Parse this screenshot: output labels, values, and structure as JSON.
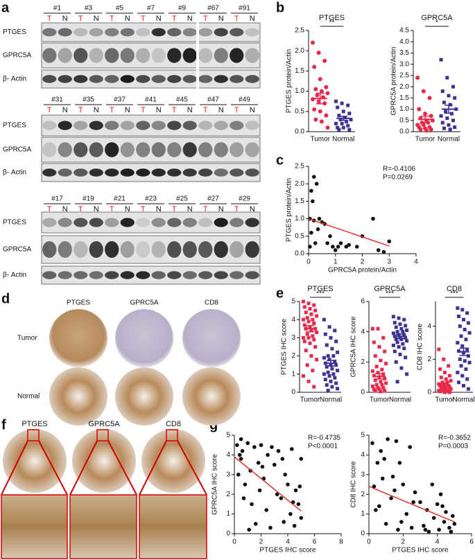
{
  "panel_labels": [
    "a",
    "b",
    "c",
    "d",
    "e",
    "f",
    "g"
  ],
  "blots": [
    {
      "samples": [
        "#1",
        "#3",
        "#5",
        "#7",
        "#9",
        "#67",
        "#91"
      ],
      "lane_labels": [
        "T",
        "N"
      ],
      "rows": [
        "PTGES",
        "GPRC5A",
        "β- Actin"
      ]
    },
    {
      "samples": [
        "#31",
        "#35",
        "#37",
        "#41",
        "#45",
        "#47",
        "#49"
      ],
      "lane_labels": [
        "T",
        "N"
      ],
      "rows": [
        "PTGES",
        "GPRC5A",
        "β- Actin"
      ]
    },
    {
      "samples": [
        "#17",
        "#19",
        "#21",
        "#23",
        "#25",
        "#27",
        "#29"
      ],
      "lane_labels": [
        "T",
        "N"
      ],
      "rows": [
        "PTGES",
        "GPRC5A",
        "β- Actin"
      ]
    }
  ],
  "tissue_d": {
    "columns": [
      "PTGES",
      "GPRC5A",
      "CD8"
    ],
    "rows": [
      "Tumor",
      "Normal"
    ]
  },
  "tissue_f": {
    "columns": [
      "PTGES",
      "GPRC5A",
      "CD8"
    ]
  },
  "chart_data": [
    {
      "type": "dot",
      "title": "PTGES",
      "ylabel": "PTGES protein/Actin",
      "categories": [
        "Tumor",
        "Normal"
      ],
      "annotation": "**",
      "ylim": [
        0,
        2.5
      ],
      "yticks": [
        {
          "value": 0,
          "label": "0.0"
        },
        0.5,
        {
          "value": 1,
          "label": "1.0"
        },
        1.5,
        {
          "value": 2,
          "label": "2.0"
        },
        2.5
      ],
      "groups": [
        {
          "color": "#e8294a",
          "marker": "circle",
          "values": [
            2.2,
            1.95,
            1.75,
            1.6,
            1.3,
            1.1,
            1.05,
            1.0,
            0.95,
            0.9,
            0.85,
            0.8,
            0.75,
            0.7,
            0.55,
            0.5,
            0.4,
            0.3,
            0.25,
            0.1
          ],
          "mean": 0.82,
          "sem": 0.13
        },
        {
          "color": "#3d3391",
          "marker": "square",
          "values": [
            0.75,
            0.7,
            0.65,
            0.6,
            0.5,
            0.45,
            0.4,
            0.35,
            0.3,
            0.3,
            0.25,
            0.2,
            0.2,
            0.15,
            0.1,
            0.1,
            0.05,
            0.05
          ],
          "mean": 0.33,
          "sem": 0.05
        }
      ]
    },
    {
      "type": "dot",
      "title": "GPRC5A",
      "ylabel": "GPRC5A protein/Actin",
      "categories": [
        "Tumor",
        "Normal"
      ],
      "annotation": "*",
      "ylim": [
        0,
        4.5
      ],
      "yticks": [
        {
          "value": 0,
          "label": "0.0"
        },
        0.5,
        {
          "value": 1,
          "label": "1.0"
        },
        1.5,
        {
          "value": 2,
          "label": "2.0"
        },
        2.5,
        {
          "value": 3,
          "label": "3.0"
        },
        3.5,
        {
          "value": 4,
          "label": "4.0"
        },
        4.5
      ],
      "groups": [
        {
          "color": "#e8294a",
          "marker": "circle",
          "values": [
            2.4,
            1.8,
            1.5,
            1.0,
            0.8,
            0.7,
            0.6,
            0.5,
            0.5,
            0.4,
            0.4,
            0.3,
            0.3,
            0.2,
            0.2,
            0.15,
            0.1,
            0.1,
            0.05
          ],
          "mean": 0.55,
          "sem": 0.14
        },
        {
          "color": "#3d3391",
          "marker": "square",
          "values": [
            3.2,
            2.4,
            2.0,
            1.8,
            1.6,
            1.5,
            1.3,
            1.2,
            1.0,
            0.9,
            0.8,
            0.7,
            0.6,
            0.5,
            0.4,
            0.3,
            0.2,
            0.15,
            0.1
          ],
          "mean": 1.0,
          "sem": 0.18
        }
      ]
    },
    {
      "type": "scatter",
      "xlabel": "GPRC5A protein/Actin",
      "ylabel": "PTGES protein/Actin",
      "annotations": [
        "R=-0.4106",
        "P=0.0269"
      ],
      "color": "#111111",
      "fit_color": "#e03030",
      "xlim": [
        0,
        4
      ],
      "xticks": [
        0,
        1,
        2,
        3,
        4
      ],
      "ylim": [
        0,
        2.5
      ],
      "yticks": [
        {
          "value": 0,
          "label": "0.0"
        },
        0.5,
        {
          "value": 1,
          "label": "1.0"
        },
        1.5,
        {
          "value": 2,
          "label": "2.0"
        },
        2.5
      ],
      "x": [
        0.05,
        0.1,
        0.2,
        0.15,
        0.3,
        0.2,
        0.4,
        0.35,
        0.5,
        0.6,
        0.1,
        0.25,
        0.7,
        0.8,
        0.9,
        1.0,
        1.1,
        1.2,
        1.4,
        1.5,
        1.8,
        2.0,
        2.4,
        2.6,
        2.8,
        3.0,
        0.05
      ],
      "y": [
        1.0,
        1.8,
        2.2,
        1.5,
        2.0,
        0.95,
        1.0,
        0.7,
        0.9,
        0.85,
        0.6,
        0.3,
        0.3,
        0.5,
        0.2,
        0.1,
        0.2,
        0.3,
        0.2,
        0.25,
        0.2,
        0.5,
        1.0,
        0.1,
        0.05,
        0.35,
        0.2
      ],
      "fit_x": [
        0,
        3
      ],
      "fit_y": [
        1.0,
        0.22
      ]
    },
    {
      "type": "dot",
      "title": "PTGES",
      "ylabel": "PTGES IHC score",
      "categories": [
        "Tumor",
        "Normal"
      ],
      "annotation": "***",
      "ylim": [
        0,
        5
      ],
      "yticks": [
        0,
        1,
        2,
        3,
        4,
        5
      ],
      "groups": [
        {
          "color": "#e8294a",
          "marker": "square",
          "values": [
            5,
            4.9,
            4.8,
            4.7,
            4.6,
            4.5,
            4.4,
            4.3,
            4.2,
            4.1,
            4,
            4,
            3.9,
            3.8,
            3.7,
            3.6,
            3.5,
            3.5,
            3.4,
            3.3,
            3.2,
            3.1,
            3,
            3,
            2.9,
            2.8,
            2.7,
            2.5,
            2.3,
            2,
            1.8,
            1.5,
            1.2,
            0.9,
            0.6,
            0.3
          ],
          "mean": 3.5,
          "sem": 0.17
        },
        {
          "color": "#3d3391",
          "marker": "square",
          "values": [
            4,
            3.6,
            3.4,
            3.2,
            3,
            2.8,
            2.6,
            2.4,
            2.2,
            2,
            2,
            1.9,
            1.8,
            1.7,
            1.6,
            1.5,
            1.5,
            1.4,
            1.3,
            1.2,
            1.1,
            1,
            1,
            0.9,
            0.8,
            0.7,
            0.6,
            0.5,
            0.4,
            0.3,
            0.2,
            0.1
          ],
          "mean": 1.6,
          "sem": 0.15
        }
      ]
    },
    {
      "type": "dot",
      "title": "GPRC5A",
      "ylabel": "GPRC5A IHC score",
      "categories": [
        "Tumor",
        "Normal"
      ],
      "annotation": "***",
      "ylim": [
        0,
        6
      ],
      "yticks": [
        0,
        2,
        4,
        6
      ],
      "groups": [
        {
          "color": "#e8294a",
          "marker": "square",
          "values": [
            4.2,
            4.2,
            3.6,
            3.3,
            3,
            2.7,
            2.4,
            2.1,
            1.9,
            1.7,
            1.5,
            1.4,
            1.3,
            1.2,
            1.1,
            1,
            0.9,
            0.8,
            0.7,
            0.6,
            0.5,
            0.5,
            0.4,
            0.3,
            0.3,
            0.2,
            0.2,
            0.1,
            0.1,
            0.05
          ],
          "mean": 1.05,
          "sem": 0.17
        },
        {
          "color": "#3d3391",
          "marker": "square",
          "values": [
            5,
            4.9,
            4.8,
            4.6,
            4.5,
            4.4,
            4.3,
            4.2,
            4.1,
            4,
            4,
            3.9,
            3.8,
            3.8,
            3.7,
            3.6,
            3.6,
            3.5,
            3.5,
            3.4,
            3.3,
            3.2,
            3.1,
            3,
            2.9,
            2.7,
            2.5,
            2.3,
            2,
            1.6,
            1.2,
            0.7
          ],
          "mean": 3.7,
          "sem": 0.13
        }
      ]
    },
    {
      "type": "dot",
      "title": "CD8",
      "ylabel": "CD8 IHC score",
      "categories": [
        "Tumor",
        "Normal"
      ],
      "annotation": "***",
      "ylim": [
        0,
        5.5
      ],
      "yticks": [
        0,
        2,
        4
      ],
      "groups": [
        {
          "color": "#e8294a",
          "marker": "square",
          "values": [
            2.6,
            2,
            1.6,
            1.4,
            1.2,
            1,
            0.9,
            0.8,
            0.7,
            0.6,
            0.6,
            0.5,
            0.5,
            0.4,
            0.4,
            0.3,
            0.3,
            0.3,
            0.2,
            0.2,
            0.2,
            0.1,
            0.1,
            0.1,
            0.05,
            0.05,
            0,
            0
          ],
          "mean": 0.45,
          "sem": 0.1
        },
        {
          "color": "#3d3391",
          "marker": "square",
          "values": [
            5.1,
            5,
            4.8,
            4.6,
            4.4,
            4.2,
            4,
            3.8,
            3.6,
            3.4,
            3.2,
            3,
            2.8,
            2.6,
            2.5,
            2.4,
            2.2,
            2,
            1.9,
            1.8,
            1.6,
            1.4,
            1.2,
            1,
            0.8,
            0.6,
            0.4,
            0.2
          ],
          "mean": 2.45,
          "sem": 0.22
        }
      ]
    },
    {
      "type": "scatter",
      "xlabel": "PTGES IHC score",
      "ylabel": "GPRC5A IHC score",
      "annotations": [
        "R=-0.4735",
        "P<0.0001"
      ],
      "color": "#111111",
      "fit_color": "#e03030",
      "xlim": [
        0,
        8
      ],
      "xticks": [
        0,
        2,
        4,
        6,
        8
      ],
      "ylim": [
        0,
        5
      ],
      "yticks": [
        0,
        1,
        2,
        3,
        4,
        5
      ],
      "x": [
        0.2,
        0.4,
        0.5,
        0.6,
        0.8,
        1,
        1.2,
        1.3,
        1.5,
        1.6,
        1.8,
        2,
        2.2,
        2.4,
        2.5,
        2.7,
        3,
        3.2,
        3.3,
        3.5,
        3.7,
        3.8,
        4,
        4.2,
        4.3,
        4.5,
        4.6,
        4.8,
        5,
        5,
        0.3,
        0.7,
        1.1,
        1.9,
        2.8,
        3.6,
        4.4,
        4.9,
        0.5,
        2.1
      ],
      "y": [
        4.5,
        4,
        3.8,
        4.2,
        2.5,
        4.6,
        3.2,
        1.5,
        4.4,
        0.5,
        3.6,
        4.5,
        2.8,
        1.2,
        4,
        0.3,
        3.5,
        2,
        4.2,
        1.8,
        0.6,
        3,
        2.5,
        1,
        4.3,
        0.4,
        2.2,
        1.5,
        3.8,
        0.8,
        3,
        1.8,
        0.2,
        2.2,
        4.4,
        3.8,
        1.6,
        2.4,
        4.8,
        3.4
      ],
      "fit_x": [
        0,
        5
      ],
      "fit_y": [
        3.9,
        1.15
      ]
    },
    {
      "type": "scatter",
      "xlabel": "PTGES IHC score",
      "ylabel": "CD8 IHC score",
      "annotations": [
        "R=-0.3652",
        "P=0.0003"
      ],
      "color": "#111111",
      "fit_color": "#e03030",
      "xlim": [
        0,
        6
      ],
      "xticks": [
        0,
        2,
        4,
        6
      ],
      "ylim": [
        0,
        5
      ],
      "yticks": [
        0,
        1,
        2,
        3,
        4,
        5
      ],
      "x": [
        0.2,
        0.3,
        0.5,
        0.6,
        0.8,
        1,
        1.1,
        1.3,
        1.5,
        1.6,
        1.7,
        1.8,
        2,
        2.2,
        2.4,
        2.5,
        2.7,
        3,
        3.2,
        3.4,
        3.5,
        3.7,
        3.8,
        4,
        4.1,
        4.2,
        4.4,
        4.5,
        4.7,
        4.9,
        5,
        0.4,
        0.9,
        1.4,
        1.9,
        2.6,
        3.3,
        4.3,
        4.8,
        0.7
      ],
      "y": [
        4.6,
        2.4,
        3.6,
        1.4,
        2.8,
        0.5,
        4.8,
        1.8,
        2.2,
        4.7,
        0.2,
        3.6,
        2.5,
        1,
        4.4,
        0.3,
        2.1,
        1.6,
        0.4,
        1.2,
        0.1,
        2.5,
        0.8,
        1.5,
        0.2,
        2,
        0.6,
        1.1,
        0.3,
        0.9,
        0.5,
        1.2,
        3.8,
        2.9,
        0.6,
        1.6,
        0.2,
        1.4,
        0.1,
        4.2
      ],
      "fit_x": [
        0,
        5
      ],
      "fit_y": [
        2.4,
        0.6
      ]
    }
  ]
}
